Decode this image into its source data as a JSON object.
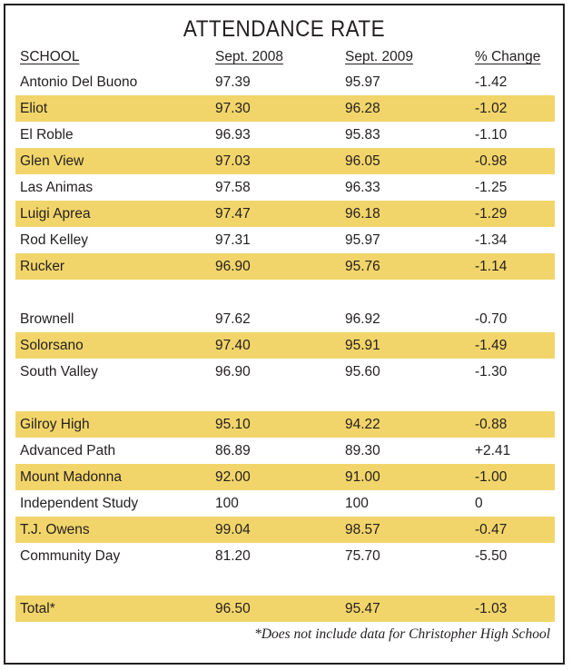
{
  "chart_data": {
    "type": "table",
    "title": "ATTENDANCE RATE",
    "columns": [
      "SCHOOL",
      "Sept. 2008",
      "Sept. 2009",
      "% Change"
    ],
    "groups": [
      [
        [
          "Antonio Del Buono",
          "97.39",
          "95.97",
          "-1.42"
        ],
        [
          "Eliot",
          "97.30",
          "96.28",
          "-1.02"
        ],
        [
          "El Roble",
          "96.93",
          "95.83",
          "-1.10"
        ],
        [
          "Glen View",
          "97.03",
          "96.05",
          "-0.98"
        ],
        [
          "Las Animas",
          "97.58",
          "96.33",
          "-1.25"
        ],
        [
          "Luigi Aprea",
          "97.47",
          "96.18",
          "-1.29"
        ],
        [
          "Rod Kelley",
          "97.31",
          "95.97",
          "-1.34"
        ],
        [
          "Rucker",
          "96.90",
          "95.76",
          "-1.14"
        ]
      ],
      [
        [
          "Brownell",
          "97.62",
          "96.92",
          "-0.70"
        ],
        [
          "Solorsano",
          "97.40",
          "95.91",
          "-1.49"
        ],
        [
          "South Valley",
          "96.90",
          "95.60",
          "-1.30"
        ]
      ],
      [
        [
          "Gilroy High",
          "95.10",
          "94.22",
          "-0.88"
        ],
        [
          "Advanced Path",
          "86.89",
          "89.30",
          "+2.41"
        ],
        [
          "Mount Madonna",
          "92.00",
          "91.00",
          "-1.00"
        ],
        [
          "Independent Study",
          "100",
          "100",
          "0"
        ],
        [
          "T.J. Owens",
          "99.04",
          "98.57",
          "-0.47"
        ],
        [
          "Community Day",
          "81.20",
          "75.70",
          "-5.50"
        ]
      ],
      [
        [
          "Total*",
          "96.50",
          "95.47",
          "-1.03"
        ]
      ]
    ],
    "footnote": "*Does not include data for Christopher High School"
  },
  "colors": {
    "stripe": "#f2d56a",
    "text": "#231f20",
    "border": "#231f20"
  }
}
